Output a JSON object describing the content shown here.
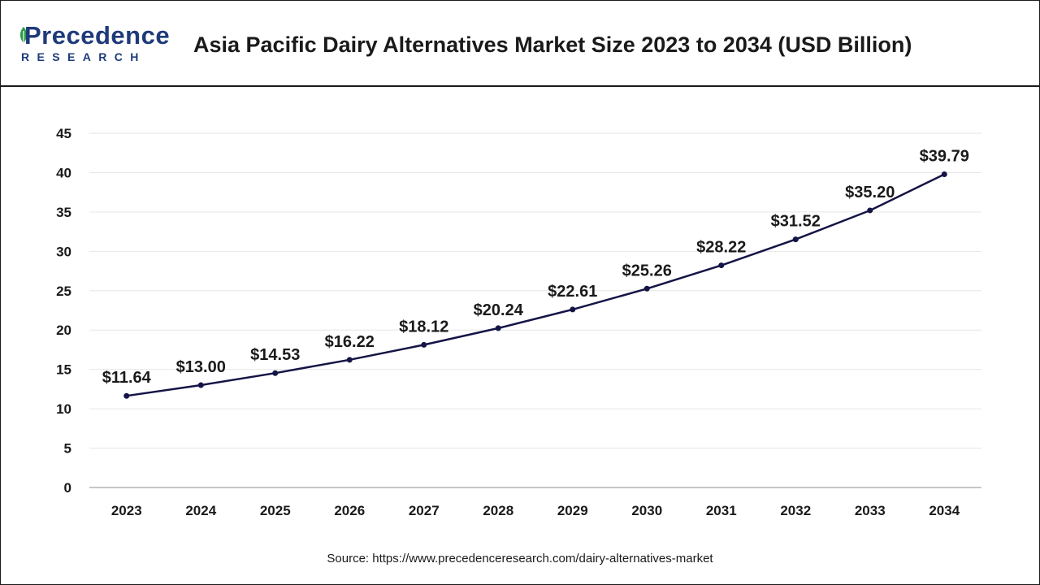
{
  "brand": {
    "name": "Precedence",
    "sub": "RESEARCH",
    "color": "#1e3a7a",
    "leaf_color": "#2e9a4a"
  },
  "title": "Asia Pacific Dairy Alternatives Market Size 2023 to 2034 (USD Billion)",
  "source": "Source: https://www.precedenceresearch.com/dairy-alternatives-market",
  "chart_data": {
    "type": "line",
    "title": "Asia Pacific Dairy Alternatives Market Size 2023 to 2034 (USD Billion)",
    "xlabel": "",
    "ylabel": "",
    "categories": [
      "2023",
      "2024",
      "2025",
      "2026",
      "2027",
      "2028",
      "2029",
      "2030",
      "2031",
      "2032",
      "2033",
      "2034"
    ],
    "values": [
      11.64,
      13.0,
      14.53,
      16.22,
      18.12,
      20.24,
      22.61,
      25.26,
      28.22,
      31.52,
      35.2,
      39.79
    ],
    "data_labels": [
      "$11.64",
      "$13.00",
      "$14.53",
      "$16.22",
      "$18.12",
      "$20.24",
      "$22.61",
      "$25.26",
      "$28.22",
      "$31.52",
      "$35.20",
      "$39.79"
    ],
    "ylim": [
      0,
      45
    ],
    "yticks": [
      0,
      5,
      10,
      15,
      20,
      25,
      30,
      35,
      40,
      45
    ],
    "grid": true,
    "line_color": "#141446",
    "grid_color": "#e6e6e6"
  }
}
